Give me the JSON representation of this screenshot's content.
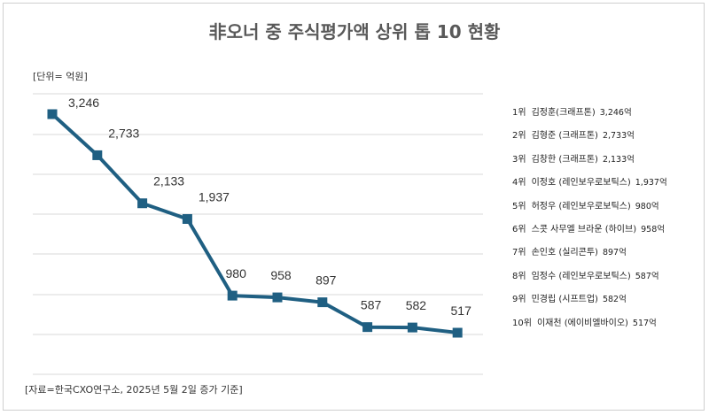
{
  "chart_data": {
    "type": "line",
    "title": "非오너 중 주식평가액 상위 톱 10 현황",
    "unit_label": "[단위= 억원]",
    "source": "[자료=한국CXO연구소, 2025년 5월 2일 증가 기준]",
    "categories": [
      "김정훈",
      "김형준",
      "김창한",
      "이정호",
      "허정우",
      "스콧 사무엘 브라운",
      "손인호",
      "임정수",
      "민경립",
      "이재천"
    ],
    "values": [
      3246,
      2733,
      2133,
      1937,
      980,
      958,
      897,
      587,
      582,
      517
    ],
    "value_labels": [
      "3,246",
      "2,733",
      "2,133",
      "1,937",
      "980",
      "958",
      "897",
      "587",
      "582",
      "517"
    ],
    "grid": true,
    "legend_position": "right",
    "line_color": "#1f5f82",
    "marker": "square"
  },
  "legend": [
    {
      "rank": "1위",
      "name": "김정훈(크래프톤)",
      "amount": "3,246억"
    },
    {
      "rank": "2위",
      "name": "김형준 (크래프톤)",
      "amount": "2,733억"
    },
    {
      "rank": "3위",
      "name": "김창한 (크래프톤)",
      "amount": "2,133억"
    },
    {
      "rank": "4위",
      "name": "이정호 (레인보우로보틱스)",
      "amount": "1,937억"
    },
    {
      "rank": "5위",
      "name": "허정우 (레인보우로보틱스)",
      "amount": "980억"
    },
    {
      "rank": "6위",
      "name": "스콧 사무엘 브라운 (하이브)",
      "amount": "958억"
    },
    {
      "rank": "7위",
      "name": "손인호 (실리콘투)",
      "amount": "897억"
    },
    {
      "rank": "8위",
      "name": "임정수 (레인보우로보틱스)",
      "amount": "587억"
    },
    {
      "rank": "9위",
      "name": "민경립 (시프트업)",
      "amount": "582억"
    },
    {
      "rank": "10위",
      "name": "이재천 (에이비엘바이오)",
      "amount": "517억"
    }
  ]
}
